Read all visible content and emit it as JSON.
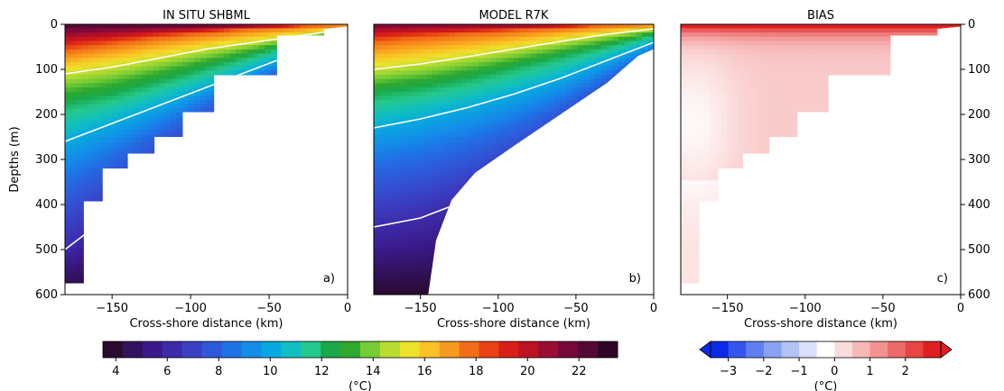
{
  "chart_data": [
    {
      "type": "heatmap",
      "panel_label": "a)",
      "title": "IN SITU SHBML",
      "xlabel": "Cross-shore distance (km)",
      "ylabel": "Depths (m)",
      "xlim": [
        -180,
        0
      ],
      "ylim": [
        -600,
        0
      ],
      "xticks": [
        -150,
        -100,
        -50,
        0
      ],
      "yticks": [
        0,
        -100,
        -200,
        -300,
        -400,
        -500,
        -600
      ],
      "ytick_labels": [
        "0",
        "100",
        "200",
        "300",
        "400",
        "500",
        "600"
      ],
      "variable": "temperature",
      "units": "(°C)",
      "surface_temp": 23,
      "bottom_profile": [
        [
          -180,
          -575
        ],
        [
          -168,
          -575
        ],
        [
          -168,
          -393
        ],
        [
          -156,
          -393
        ],
        [
          -156,
          -320
        ],
        [
          -140,
          -320
        ],
        [
          -140,
          -287
        ],
        [
          -123,
          -287
        ],
        [
          -123,
          -250
        ],
        [
          -105,
          -250
        ],
        [
          -105,
          -195
        ],
        [
          -85,
          -195
        ],
        [
          -85,
          -113
        ],
        [
          -45,
          -113
        ],
        [
          -45,
          -25
        ],
        [
          -15,
          -25
        ],
        [
          -15,
          -10
        ],
        [
          0,
          -5
        ]
      ],
      "isotherm_depths": [
        {
          "temp": 18,
          "points": [
            [
              -180,
              -60
            ],
            [
              -150,
              -45
            ],
            [
              -120,
              -30
            ],
            [
              -90,
              -20
            ],
            [
              -60,
              -10
            ],
            [
              -30,
              -5
            ],
            [
              0,
              -2
            ]
          ]
        },
        {
          "temp": 15,
          "points": [
            [
              -180,
              -110
            ],
            [
              -150,
              -95
            ],
            [
              -120,
              -75
            ],
            [
              -90,
              -55
            ],
            [
              -60,
              -40
            ],
            [
              -30,
              -25
            ],
            [
              0,
              -10
            ]
          ]
        },
        {
          "temp": 12,
          "points": [
            [
              -180,
              -180
            ],
            [
              -150,
              -160
            ],
            [
              -120,
              -130
            ],
            [
              -90,
              -100
            ],
            [
              -60,
              -70
            ],
            [
              -30,
              -40
            ],
            [
              0,
              -20
            ]
          ]
        },
        {
          "temp": 10,
          "points": [
            [
              -180,
              -260
            ],
            [
              -150,
              -220
            ],
            [
              -120,
              -180
            ],
            [
              -90,
              -140
            ],
            [
              -60,
              -100
            ],
            [
              -30,
              -60
            ],
            [
              0,
              -30
            ]
          ]
        },
        {
          "temp": 8,
          "points": [
            [
              -180,
              -360
            ],
            [
              -150,
              -300
            ],
            [
              -120,
              -240
            ],
            [
              -90,
              -180
            ],
            [
              -60,
              -130
            ],
            [
              -30,
              -80
            ],
            [
              0,
              -40
            ]
          ]
        },
        {
          "temp": 6,
          "points": [
            [
              -180,
              -500
            ],
            [
              -150,
              -420
            ],
            [
              -120,
              -340
            ],
            [
              -90,
              -260
            ],
            [
              -60,
              -170
            ],
            [
              -30,
              -100
            ],
            [
              0,
              -50
            ]
          ]
        }
      ]
    },
    {
      "type": "heatmap",
      "panel_label": "b)",
      "title": "MODEL R7K",
      "xlabel": "Cross-shore distance (km)",
      "xlim": [
        -180,
        0
      ],
      "ylim": [
        -600,
        0
      ],
      "xticks": [
        -150,
        -100,
        -50,
        0
      ],
      "variable": "temperature",
      "units": "(°C)",
      "surface_temp": 22,
      "bottom_profile": [
        [
          -180,
          -600
        ],
        [
          -145,
          -600
        ],
        [
          -140,
          -480
        ],
        [
          -130,
          -390
        ],
        [
          -115,
          -330
        ],
        [
          -90,
          -270
        ],
        [
          -60,
          -200
        ],
        [
          -30,
          -130
        ],
        [
          -10,
          -70
        ],
        [
          0,
          -55
        ]
      ],
      "isotherm_depths": [
        {
          "temp": 18,
          "points": [
            [
              -180,
              -40
            ],
            [
              -150,
              -30
            ],
            [
              -120,
              -22
            ],
            [
              -90,
              -15
            ],
            [
              -60,
              -8
            ],
            [
              -30,
              -3
            ],
            [
              0,
              -1
            ]
          ]
        },
        {
          "temp": 15,
          "points": [
            [
              -180,
              -100
            ],
            [
              -150,
              -88
            ],
            [
              -120,
              -72
            ],
            [
              -90,
              -55
            ],
            [
              -60,
              -38
            ],
            [
              -30,
              -22
            ],
            [
              0,
              -10
            ]
          ]
        },
        {
          "temp": 12,
          "points": [
            [
              -180,
              -160
            ],
            [
              -150,
              -145
            ],
            [
              -120,
              -125
            ],
            [
              -90,
              -100
            ],
            [
              -60,
              -75
            ],
            [
              -30,
              -50
            ],
            [
              0,
              -25
            ]
          ]
        },
        {
          "temp": 10,
          "points": [
            [
              -180,
              -230
            ],
            [
              -150,
              -210
            ],
            [
              -120,
              -185
            ],
            [
              -90,
              -155
            ],
            [
              -60,
              -120
            ],
            [
              -30,
              -80
            ],
            [
              0,
              -40
            ]
          ]
        },
        {
          "temp": 8,
          "points": [
            [
              -180,
              -320
            ],
            [
              -150,
              -300
            ],
            [
              -120,
              -270
            ],
            [
              -90,
              -230
            ],
            [
              -60,
              -180
            ],
            [
              -30,
              -120
            ],
            [
              0,
              -60
            ]
          ]
        },
        {
          "temp": 6,
          "points": [
            [
              -180,
              -450
            ],
            [
              -150,
              -430
            ],
            [
              -120,
              -390
            ],
            [
              -90,
              -330
            ],
            [
              -60,
              -250
            ],
            [
              -30,
              -160
            ],
            [
              0,
              -80
            ]
          ]
        }
      ]
    },
    {
      "type": "heatmap",
      "panel_label": "c)",
      "title": "BIAS",
      "xlabel": "Cross-shore distance (km)",
      "xlim": [
        -180,
        0
      ],
      "ylim": [
        -600,
        0
      ],
      "xticks": [
        -150,
        -100,
        -50,
        0
      ],
      "yticks": [
        0,
        -100,
        -200,
        -300,
        -400,
        -500,
        -600
      ],
      "ytick_labels": [
        "0",
        "100",
        "200",
        "300",
        "400",
        "500",
        "600"
      ],
      "yaxis_position": "right",
      "variable": "temperature bias",
      "units": "(°C)",
      "bottom_profile": [
        [
          -180,
          -575
        ],
        [
          -168,
          -575
        ],
        [
          -168,
          -393
        ],
        [
          -156,
          -393
        ],
        [
          -156,
          -320
        ],
        [
          -140,
          -320
        ],
        [
          -140,
          -287
        ],
        [
          -123,
          -287
        ],
        [
          -123,
          -250
        ],
        [
          -105,
          -250
        ],
        [
          -105,
          -195
        ],
        [
          -85,
          -195
        ],
        [
          -85,
          -113
        ],
        [
          -45,
          -113
        ],
        [
          -45,
          -25
        ],
        [
          -15,
          -25
        ],
        [
          -15,
          -10
        ],
        [
          0,
          -5
        ]
      ]
    }
  ],
  "colorbars": [
    {
      "label": "(°C)",
      "vmin": 3.5,
      "vmax": 23.5,
      "ticks": [
        4,
        6,
        8,
        10,
        12,
        14,
        16,
        18,
        20,
        22
      ],
      "colors": [
        "#2a0a2e",
        "#32125e",
        "#3a1a8a",
        "#3d2aa8",
        "#3a3fc4",
        "#2f58d8",
        "#1f72e6",
        "#128ee8",
        "#08a8e0",
        "#10bfc0",
        "#25c88e",
        "#1aa848",
        "#2fa830",
        "#75cc35",
        "#b8dc30",
        "#ece22a",
        "#fbc125",
        "#f89a1e",
        "#f26e18",
        "#e84215",
        "#d81e18",
        "#bd1224",
        "#9a0c32",
        "#76083a",
        "#520a35",
        "#2f0626"
      ]
    },
    {
      "label": "(°C)",
      "vmin": -3.5,
      "vmax": 3,
      "ticks": [
        -3,
        -2,
        -1,
        0,
        1,
        2
      ],
      "colors": [
        "#0b2ae8",
        "#3556ee",
        "#5f7ef0",
        "#8aa1f2",
        "#b3c2f5",
        "#d9e0fa",
        "#ffffff",
        "#fbdcdc",
        "#f7b8b8",
        "#f29292",
        "#ec6a6a",
        "#e84545",
        "#e02020"
      ]
    }
  ]
}
